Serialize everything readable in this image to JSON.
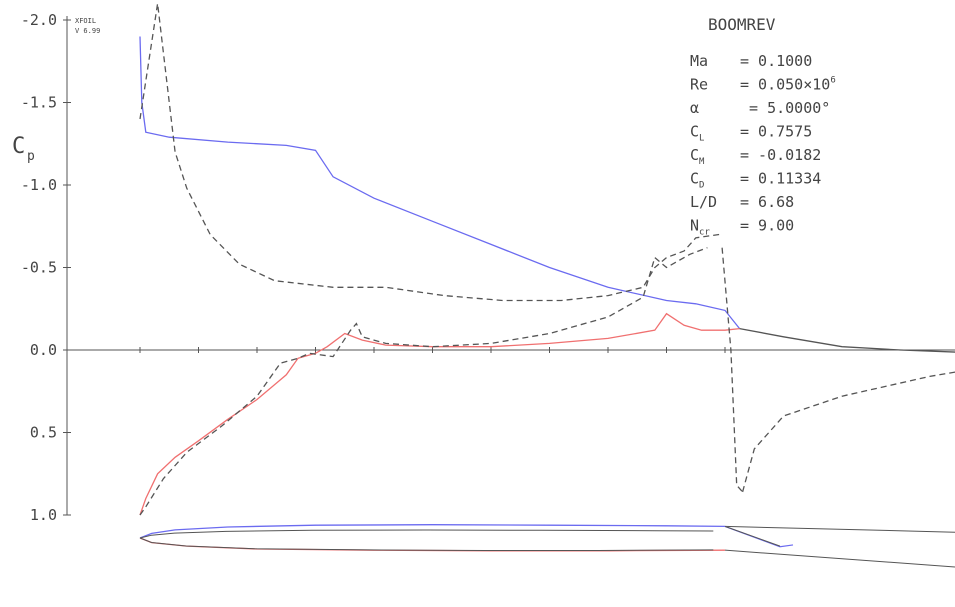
{
  "chart_data": {
    "type": "line",
    "program": "XFOIL",
    "version": "V 6.99",
    "ylabel": "C",
    "ylabel_sub": "p",
    "y_ticks": [
      "-2.0",
      "-1.5",
      "-1.0",
      "-0.5",
      "0.0",
      "0.5",
      "1.0"
    ],
    "ylim": [
      -2.0,
      1.0
    ],
    "y_inverted": true,
    "xlim": [
      0,
      1
    ],
    "info": {
      "title": "BOOMREV",
      "lines": [
        {
          "symbol": "Ma",
          "sub": "",
          "value": "= 0.1000"
        },
        {
          "symbol": "Re",
          "sub": "",
          "value": "= 0.050×10",
          "sup": "6"
        },
        {
          "symbol": "α",
          "sub": "",
          "value": " = 5.0000°"
        },
        {
          "symbol": "C",
          "sub": "L",
          "value": "= 0.7575"
        },
        {
          "symbol": "C",
          "sub": "M",
          "value": "= -0.0182"
        },
        {
          "symbol": "C",
          "sub": "D",
          "value": "= 0.11334"
        },
        {
          "symbol": "L/D",
          "sub": "",
          "value": "= 6.68"
        },
        {
          "symbol": "N",
          "sub": "cr",
          "value": "= 9.00"
        }
      ]
    },
    "colors": {
      "upper": "#6b6bf0",
      "lower": "#f07070",
      "inviscid": "#555555",
      "wake": "#555555",
      "axis": "#555555",
      "airfoil": "#555555"
    },
    "series": [
      {
        "key": "upper",
        "style": "solid",
        "points": [
          [
            0.0,
            -1.9
          ],
          [
            0.003,
            -1.5
          ],
          [
            0.01,
            -1.32
          ],
          [
            0.05,
            -1.29
          ],
          [
            0.15,
            -1.26
          ],
          [
            0.25,
            -1.24
          ],
          [
            0.3,
            -1.21
          ],
          [
            0.33,
            -1.05
          ],
          [
            0.4,
            -0.92
          ],
          [
            0.5,
            -0.78
          ],
          [
            0.6,
            -0.64
          ],
          [
            0.7,
            -0.5
          ],
          [
            0.8,
            -0.38
          ],
          [
            0.9,
            -0.3
          ],
          [
            0.95,
            -0.28
          ],
          [
            1.0,
            -0.24
          ],
          [
            1.025,
            -0.13
          ]
        ]
      },
      {
        "key": "lower",
        "style": "solid",
        "points": [
          [
            0.0,
            1.0
          ],
          [
            0.01,
            0.9
          ],
          [
            0.03,
            0.75
          ],
          [
            0.06,
            0.65
          ],
          [
            0.1,
            0.55
          ],
          [
            0.15,
            0.42
          ],
          [
            0.2,
            0.3
          ],
          [
            0.25,
            0.15
          ],
          [
            0.27,
            0.05
          ],
          [
            0.3,
            0.02
          ],
          [
            0.32,
            -0.02
          ],
          [
            0.35,
            -0.1
          ],
          [
            0.38,
            -0.06
          ],
          [
            0.42,
            -0.03
          ],
          [
            0.5,
            -0.02
          ],
          [
            0.6,
            -0.02
          ],
          [
            0.7,
            -0.04
          ],
          [
            0.8,
            -0.07
          ],
          [
            0.88,
            -0.12
          ],
          [
            0.9,
            -0.22
          ],
          [
            0.93,
            -0.15
          ],
          [
            0.96,
            -0.12
          ],
          [
            1.0,
            -0.12
          ],
          [
            1.025,
            -0.13
          ]
        ]
      },
      {
        "key": "inviscid-upper",
        "style": "dashed",
        "points": [
          [
            0.0,
            -1.4
          ],
          [
            0.03,
            -2.1
          ],
          [
            0.06,
            -1.2
          ],
          [
            0.08,
            -0.98
          ],
          [
            0.12,
            -0.7
          ],
          [
            0.17,
            -0.52
          ],
          [
            0.23,
            -0.42
          ],
          [
            0.33,
            -0.38
          ],
          [
            0.42,
            -0.38
          ],
          [
            0.52,
            -0.33
          ],
          [
            0.62,
            -0.3
          ],
          [
            0.72,
            -0.3
          ],
          [
            0.8,
            -0.33
          ],
          [
            0.86,
            -0.38
          ],
          [
            0.88,
            -0.5
          ],
          [
            0.9,
            -0.56
          ],
          [
            0.93,
            -0.6
          ],
          [
            0.95,
            -0.68
          ],
          [
            0.99,
            -0.7
          ]
        ]
      },
      {
        "key": "inviscid-lower",
        "style": "dashed",
        "points": [
          [
            0.0,
            1.0
          ],
          [
            0.01,
            0.95
          ],
          [
            0.04,
            0.78
          ],
          [
            0.08,
            0.62
          ],
          [
            0.14,
            0.46
          ],
          [
            0.2,
            0.28
          ],
          [
            0.24,
            0.08
          ],
          [
            0.27,
            0.05
          ],
          [
            0.29,
            0.02
          ],
          [
            0.33,
            0.04
          ],
          [
            0.36,
            -0.12
          ],
          [
            0.37,
            -0.16
          ],
          [
            0.38,
            -0.08
          ],
          [
            0.42,
            -0.04
          ],
          [
            0.5,
            -0.02
          ],
          [
            0.6,
            -0.04
          ],
          [
            0.7,
            -0.1
          ],
          [
            0.8,
            -0.2
          ],
          [
            0.86,
            -0.32
          ],
          [
            0.88,
            -0.56
          ],
          [
            0.9,
            -0.5
          ],
          [
            0.94,
            -0.58
          ],
          [
            0.97,
            -0.62
          ]
        ]
      },
      {
        "key": "inviscid-te-spike",
        "style": "dashed",
        "points": [
          [
            0.995,
            -0.62
          ],
          [
            1.01,
            0.0
          ],
          [
            1.02,
            0.82
          ],
          [
            1.03,
            0.86
          ]
        ]
      },
      {
        "key": "inviscid-wake",
        "style": "dashed",
        "points": [
          [
            1.03,
            0.86
          ],
          [
            1.05,
            0.6
          ],
          [
            1.1,
            0.4
          ],
          [
            1.2,
            0.28
          ],
          [
            1.35,
            0.16
          ],
          [
            1.45,
            0.1
          ],
          [
            1.55,
            0.08
          ]
        ]
      },
      {
        "key": "wake",
        "style": "solid",
        "points": [
          [
            1.025,
            -0.13
          ],
          [
            1.1,
            -0.08
          ],
          [
            1.2,
            -0.02
          ],
          [
            1.3,
            0.0
          ],
          [
            1.45,
            0.02
          ],
          [
            1.55,
            0.03
          ]
        ]
      }
    ],
    "airfoil": {
      "upper": [
        [
          0.0,
          0.0
        ],
        [
          0.02,
          0.08
        ],
        [
          0.06,
          0.14
        ],
        [
          0.15,
          0.19
        ],
        [
          0.3,
          0.22
        ],
        [
          0.5,
          0.23
        ],
        [
          0.7,
          0.22
        ],
        [
          0.9,
          0.21
        ],
        [
          1.0,
          0.2
        ]
      ],
      "lower": [
        [
          0.0,
          0.0
        ],
        [
          0.02,
          -0.08
        ],
        [
          0.08,
          -0.14
        ],
        [
          0.2,
          -0.19
        ],
        [
          0.4,
          -0.21
        ],
        [
          0.6,
          -0.22
        ],
        [
          0.8,
          -0.22
        ],
        [
          1.0,
          -0.21
        ]
      ]
    }
  }
}
